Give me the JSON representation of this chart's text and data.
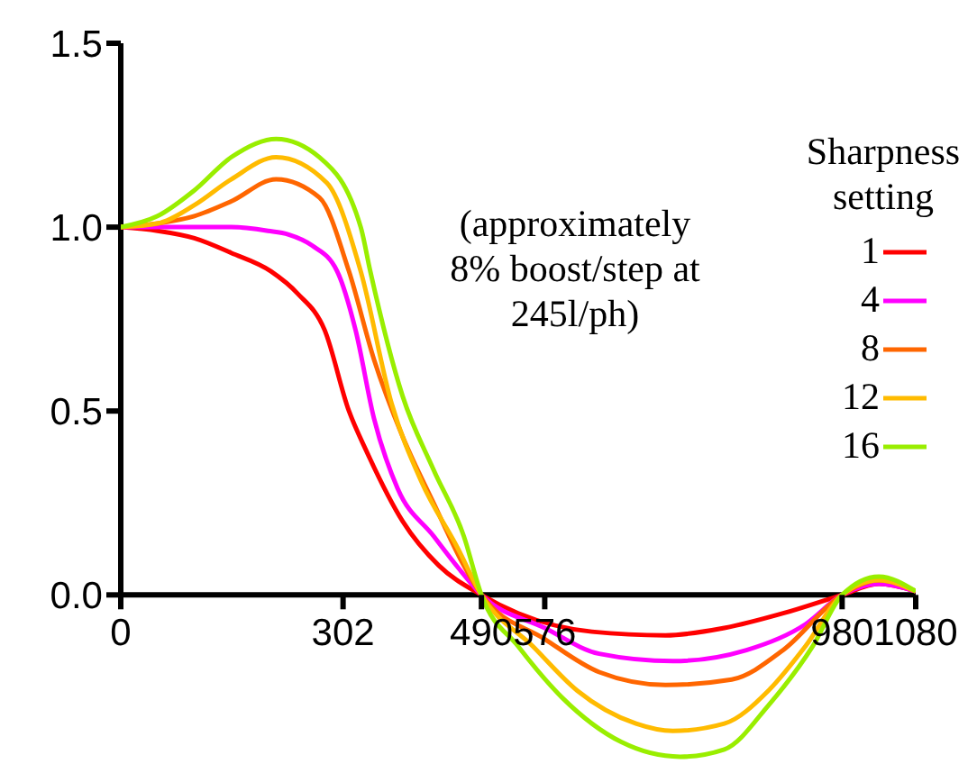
{
  "chart_data": {
    "type": "line",
    "legend_title": "Sharpness setting",
    "legend": "right",
    "grid": false,
    "marker": "none",
    "line_style": "solid",
    "annotations": [
      "(approximately 8% boost/step at 245l/ph)"
    ],
    "xlim": [
      0,
      1080
    ],
    "xticks": [
      0,
      302,
      490,
      576,
      980,
      1080
    ],
    "ylim": [
      -0.45,
      1.5
    ],
    "yticks": [
      {
        "value": 0,
        "label": "0.0"
      },
      {
        "value": 0.5,
        "label": "0.5"
      },
      {
        "value": 1,
        "label": "1.0"
      },
      {
        "value": 1.5,
        "label": "1.5"
      }
    ],
    "series": [
      {
        "name": "1",
        "color": "#ff0000",
        "x": [
          0,
          50,
          100,
          150,
          204,
          240,
          277,
          310,
          334,
          383,
          432,
          490,
          540,
          640,
          740,
          820,
          900,
          980,
          1030,
          1080
        ],
        "values": [
          1.0,
          0.99,
          0.97,
          0.93,
          0.88,
          0.82,
          0.72,
          0.5,
          0.39,
          0.2,
          0.08,
          0,
          -0.05,
          -0.1,
          -0.11,
          -0.09,
          -0.05,
          0,
          0.03,
          0.01
        ]
      },
      {
        "name": "4",
        "color": "#ff00ff",
        "x": [
          0,
          50,
          100,
          150,
          200,
          228,
          260,
          294,
          319,
          344,
          376,
          425,
          460,
          490,
          576,
          650,
          750,
          850,
          930,
          980,
          1030,
          1080
        ],
        "values": [
          1.0,
          1.0,
          1.0,
          1.0,
          0.99,
          0.98,
          0.95,
          0.88,
          0.72,
          0.48,
          0.29,
          0.16,
          0.07,
          0,
          -0.09,
          -0.16,
          -0.18,
          -0.15,
          -0.08,
          0,
          0.03,
          0.01
        ]
      },
      {
        "name": "8",
        "color": "#ff6600",
        "x": [
          0,
          50,
          100,
          150,
          211,
          270,
          310,
          344,
          383,
          425,
          466,
          490,
          576,
          650,
          740,
          830,
          900,
          980,
          1030,
          1080
        ],
        "values": [
          1.0,
          1.01,
          1.03,
          1.07,
          1.13,
          1.08,
          0.88,
          0.64,
          0.43,
          0.25,
          0.08,
          0,
          -0.12,
          -0.21,
          -0.245,
          -0.23,
          -0.15,
          0,
          0.04,
          0.01
        ]
      },
      {
        "name": "12",
        "color": "#ffbb00",
        "x": [
          0,
          50,
          100,
          150,
          211,
          280,
          326,
          368,
          408,
          457,
          490,
          560,
          620,
          700,
          750,
          820,
          880,
          930,
          980,
          1030,
          1080
        ],
        "values": [
          1.0,
          1.01,
          1.06,
          1.13,
          1.19,
          1.12,
          0.88,
          0.52,
          0.31,
          0.13,
          0,
          -0.14,
          -0.26,
          -0.35,
          -0.37,
          -0.35,
          -0.26,
          -0.14,
          0,
          0.04,
          0.01
        ]
      },
      {
        "name": "16",
        "color": "#99ee00",
        "x": [
          0,
          50,
          100,
          150,
          211,
          270,
          326,
          339,
          383,
          425,
          466,
          490,
          540,
          600,
          680,
          760,
          820,
          880,
          940,
          980,
          1030,
          1080
        ],
        "values": [
          1.0,
          1.03,
          1.1,
          1.19,
          1.24,
          1.19,
          1.0,
          0.88,
          0.54,
          0.34,
          0.16,
          0,
          -0.14,
          -0.28,
          -0.4,
          -0.44,
          -0.42,
          -0.3,
          -0.14,
          0,
          0.05,
          0.01
        ]
      }
    ]
  }
}
